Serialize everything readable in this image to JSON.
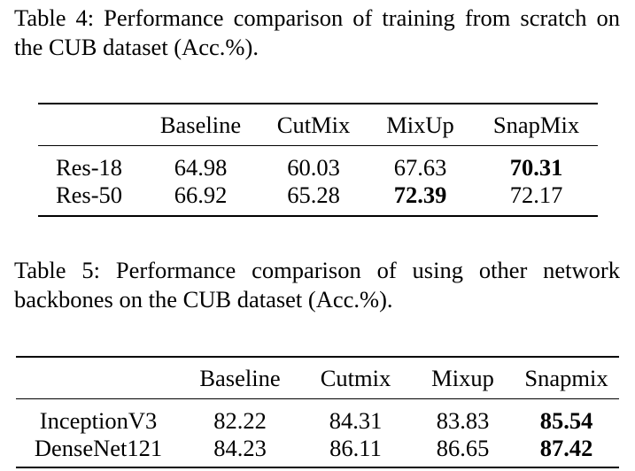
{
  "table4": {
    "caption": "Table 4: Performance comparison of training from scratch on the CUB dataset (Acc.%).",
    "headers": [
      "",
      "Baseline",
      "CutMix",
      "MixUp",
      "SnapMix"
    ],
    "rows": [
      {
        "label": "Res-18",
        "values": [
          "64.98",
          "60.03",
          "67.63",
          "70.31"
        ],
        "best_index": 3
      },
      {
        "label": "Res-50",
        "values": [
          "66.92",
          "65.28",
          "72.39",
          "72.17"
        ],
        "best_index": 2
      }
    ]
  },
  "table5": {
    "caption": "Table 5: Performance comparison of using other network backbones on the CUB dataset (Acc.%).",
    "headers": [
      "",
      "Baseline",
      "Cutmix",
      "Mixup",
      "Snapmix"
    ],
    "rows": [
      {
        "label": "InceptionV3",
        "values": [
          "82.22",
          "84.31",
          "83.83",
          "85.54"
        ],
        "best_index": 3
      },
      {
        "label": "DenseNet121",
        "values": [
          "84.23",
          "86.11",
          "86.65",
          "87.42"
        ],
        "best_index": 3
      }
    ]
  }
}
